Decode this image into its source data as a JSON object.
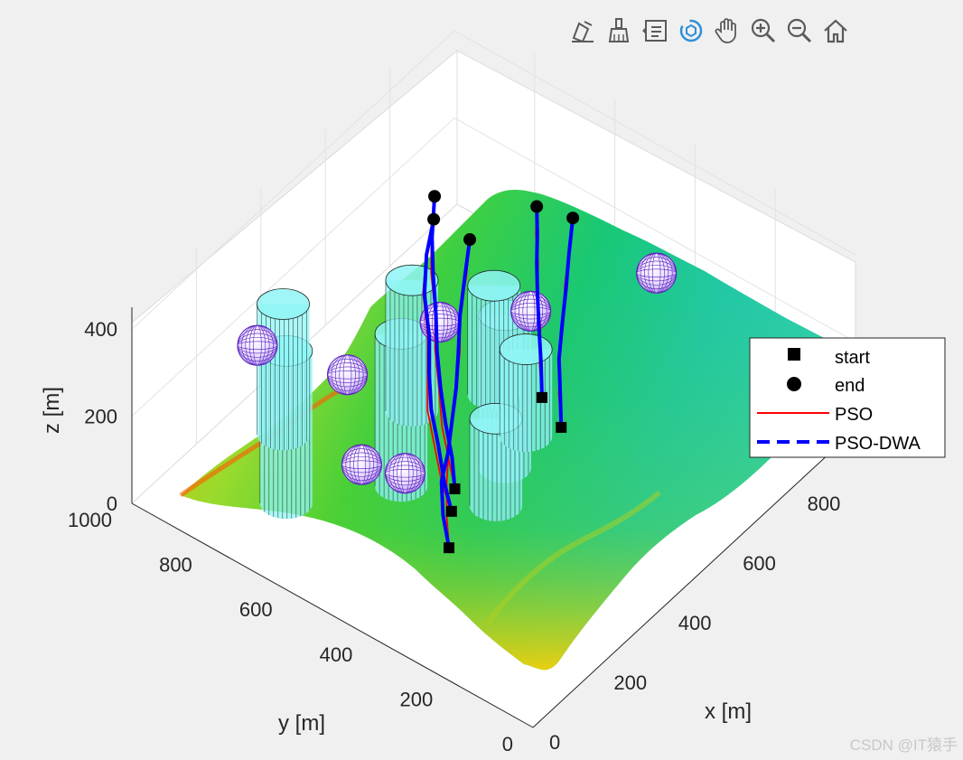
{
  "toolbar": {
    "buttons": [
      {
        "name": "edit-plot-button",
        "icon": "edit-plot-icon"
      },
      {
        "name": "brush-data-button",
        "icon": "brush-icon"
      },
      {
        "name": "data-tips-button",
        "icon": "data-tips-icon"
      },
      {
        "name": "rotate-3d-button",
        "icon": "rotate-3d-icon"
      },
      {
        "name": "pan-button",
        "icon": "hand-pan-icon"
      },
      {
        "name": "zoom-in-button",
        "icon": "zoom-in-icon"
      },
      {
        "name": "zoom-out-button",
        "icon": "zoom-out-icon"
      },
      {
        "name": "restore-view-button",
        "icon": "home-icon"
      }
    ]
  },
  "colors": {
    "pso": "#ff0000",
    "pso_dwa": "#0000ff",
    "cylinder_fill": "#8ff5f5",
    "cylinder_edge": "#000000",
    "sphere_edge": "#5a1fbf",
    "terrain_low": "#00c8a0",
    "terrain_mid": "#30d030",
    "terrain_high": "#ffd200",
    "terrain_peak": "#ff3000"
  },
  "watermark": "CSDN @IT猿手",
  "chart_data": {
    "type": "line",
    "projection": "3d",
    "xlabel": "x [m]",
    "ylabel": "y [m]",
    "zlabel": "z [m]",
    "xlim": [
      0,
      1000
    ],
    "ylim": [
      0,
      1000
    ],
    "zlim": [
      0,
      450
    ],
    "xticks": [
      "0",
      "200",
      "400",
      "600",
      "800",
      "1000"
    ],
    "yticks": [
      "0",
      "200",
      "400",
      "600",
      "800",
      "1000"
    ],
    "zticks": [
      "0",
      "200",
      "400"
    ],
    "grid": true,
    "legend": {
      "position": "right",
      "entries": [
        {
          "label": "start",
          "marker": "square"
        },
        {
          "label": "end",
          "marker": "circle"
        },
        {
          "label": "PSO",
          "style": "solid-red"
        },
        {
          "label": "PSO-DWA",
          "style": "dashed-blue"
        }
      ]
    },
    "cylinders": [
      {
        "x": 180,
        "y": 760,
        "r": 45,
        "h": 350
      },
      {
        "x": 350,
        "y": 610,
        "r": 45,
        "h": 350
      },
      {
        "x": 510,
        "y": 480,
        "r": 45,
        "h": 350
      },
      {
        "x": 320,
        "y": 880,
        "r": 45,
        "h": 300
      },
      {
        "x": 520,
        "y": 720,
        "r": 45,
        "h": 300
      },
      {
        "x": 650,
        "y": 620,
        "r": 45,
        "h": 250
      },
      {
        "x": 420,
        "y": 430,
        "r": 45,
        "h": 200
      },
      {
        "x": 600,
        "y": 500,
        "r": 45,
        "h": 200
      }
    ],
    "spheres": [
      {
        "x": 240,
        "y": 880,
        "z": 260,
        "r": 38
      },
      {
        "x": 320,
        "y": 720,
        "z": 220,
        "r": 38
      },
      {
        "x": 520,
        "y": 650,
        "z": 240,
        "r": 38
      },
      {
        "x": 240,
        "y": 620,
        "z": 120,
        "r": 38
      },
      {
        "x": 300,
        "y": 560,
        "z": 90,
        "r": 38
      },
      {
        "x": 640,
        "y": 520,
        "z": 250,
        "r": 38
      },
      {
        "x": 930,
        "y": 440,
        "z": 180,
        "r": 38
      }
    ],
    "series": [
      {
        "name": "PSO",
        "paths": [
          [
            [
              150,
              330,
              140
            ],
            [
              180,
              360,
              180
            ],
            [
              230,
              400,
              200
            ],
            [
              260,
              420,
              230
            ],
            [
              320,
              460,
              260
            ],
            [
              360,
              480,
              280
            ],
            [
              420,
              520,
              310
            ],
            [
              470,
              560,
              340
            ],
            [
              540,
              600,
              360
            ],
            [
              600,
              640,
              380
            ]
          ],
          [
            [
              280,
              420,
              140
            ],
            [
              310,
              460,
              170
            ],
            [
              340,
              500,
              200
            ],
            [
              380,
              540,
              240
            ],
            [
              430,
              590,
              270
            ],
            [
              480,
              630,
              300
            ],
            [
              530,
              680,
              330
            ],
            [
              580,
              720,
              360
            ],
            [
              640,
              760,
              390
            ]
          ],
          [
            [
              220,
              380,
              150
            ],
            [
              240,
              420,
              180
            ],
            [
              280,
              470,
              210
            ],
            [
              320,
              520,
              240
            ],
            [
              370,
              560,
              270
            ],
            [
              420,
              600,
              300
            ],
            [
              480,
              660,
              330
            ],
            [
              540,
              700,
              360
            ],
            [
              600,
              730,
              380
            ]
          ],
          [
            [
              560,
              380,
              110
            ],
            [
              590,
              410,
              150
            ],
            [
              630,
              440,
              190
            ],
            [
              680,
              470,
              230
            ],
            [
              720,
              500,
              260
            ],
            [
              770,
              530,
              290
            ],
            [
              820,
              560,
              320
            ]
          ],
          [
            [
              600,
              460,
              110
            ],
            [
              630,
              490,
              150
            ],
            [
              670,
              520,
              190
            ],
            [
              710,
              560,
              220
            ],
            [
              750,
              590,
              250
            ],
            [
              780,
              620,
              280
            ],
            [
              820,
              650,
              300
            ]
          ]
        ]
      },
      {
        "name": "PSO-DWA",
        "paths": [
          [
            [
              150,
              330,
              140
            ],
            [
              175,
              365,
              180
            ],
            [
              220,
              405,
              205
            ],
            [
              265,
              425,
              230
            ],
            [
              315,
              455,
              255
            ],
            [
              365,
              485,
              280
            ],
            [
              415,
              520,
              305
            ],
            [
              470,
              560,
              335
            ],
            [
              535,
              600,
              360
            ],
            [
              600,
              640,
              380
            ]
          ],
          [
            [
              280,
              420,
              140
            ],
            [
              315,
              455,
              170
            ],
            [
              345,
              495,
              205
            ],
            [
              385,
              540,
              238
            ],
            [
              430,
              585,
              268
            ],
            [
              480,
              628,
              298
            ],
            [
              530,
              675,
              328
            ],
            [
              580,
              718,
              358
            ],
            [
              640,
              760,
              390
            ]
          ],
          [
            [
              220,
              380,
              150
            ],
            [
              245,
              418,
              180
            ],
            [
              285,
              465,
              212
            ],
            [
              325,
              515,
              242
            ],
            [
              372,
              558,
              272
            ],
            [
              422,
              598,
              302
            ],
            [
              478,
              655,
              330
            ],
            [
              538,
              698,
              358
            ],
            [
              600,
              730,
              380
            ]
          ],
          [
            [
              560,
              380,
              110
            ],
            [
              592,
              408,
              150
            ],
            [
              628,
              440,
              190
            ],
            [
              676,
              470,
              228
            ],
            [
              722,
              498,
              258
            ],
            [
              768,
              528,
              288
            ],
            [
              820,
              560,
              320
            ]
          ],
          [
            [
              600,
              460,
              110
            ],
            [
              632,
              488,
              150
            ],
            [
              668,
              522,
              190
            ],
            [
              708,
              558,
              220
            ],
            [
              748,
              592,
              250
            ],
            [
              782,
              618,
              280
            ],
            [
              820,
              650,
              300
            ]
          ]
        ]
      }
    ]
  }
}
